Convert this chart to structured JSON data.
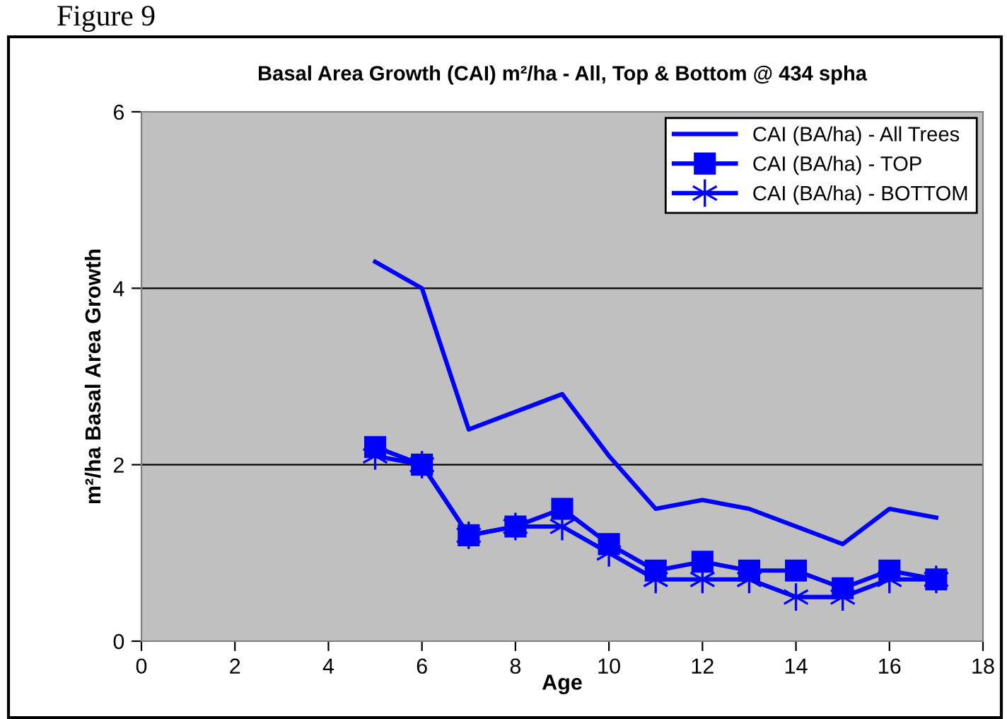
{
  "chart_data": {
    "type": "line",
    "title": "Basal Area Growth (CAI) m²/ha - All, Top & Bottom @ 434 spha",
    "xlabel": "Age",
    "ylabel": "m²/ha Basal Area Growth",
    "annotations": [
      "Figure 9"
    ],
    "x": [
      5,
      6,
      7,
      8,
      9,
      10,
      11,
      12,
      13,
      14,
      15,
      16,
      17
    ],
    "series": [
      {
        "name": "CAI (BA/ha) - All Trees",
        "color": "#0000ff",
        "marker": "none",
        "values": [
          4.3,
          4.0,
          2.4,
          2.6,
          2.8,
          2.1,
          1.5,
          1.6,
          1.5,
          1.3,
          1.1,
          1.5,
          1.4
        ]
      },
      {
        "name": "CAI (BA/ha) - TOP",
        "color": "#0000ff",
        "marker": "square",
        "values": [
          2.2,
          2.0,
          1.2,
          1.3,
          1.5,
          1.1,
          0.8,
          0.9,
          0.8,
          0.8,
          0.6,
          0.8,
          0.7
        ]
      },
      {
        "name": "CAI (BA/ha) - BOTTOM",
        "color": "#0000ff",
        "marker": "cross",
        "values": [
          2.1,
          2.0,
          1.2,
          1.3,
          1.3,
          1.0,
          0.7,
          0.7,
          0.7,
          0.5,
          0.5,
          0.7,
          0.7
        ]
      }
    ],
    "xlim": [
      0,
      18
    ],
    "xticks": [
      0,
      2,
      4,
      6,
      8,
      10,
      12,
      14,
      16,
      18
    ],
    "ylim": [
      0,
      6
    ],
    "yticks": [
      0,
      2,
      4,
      6
    ],
    "grid": "y",
    "legend": "top right"
  }
}
